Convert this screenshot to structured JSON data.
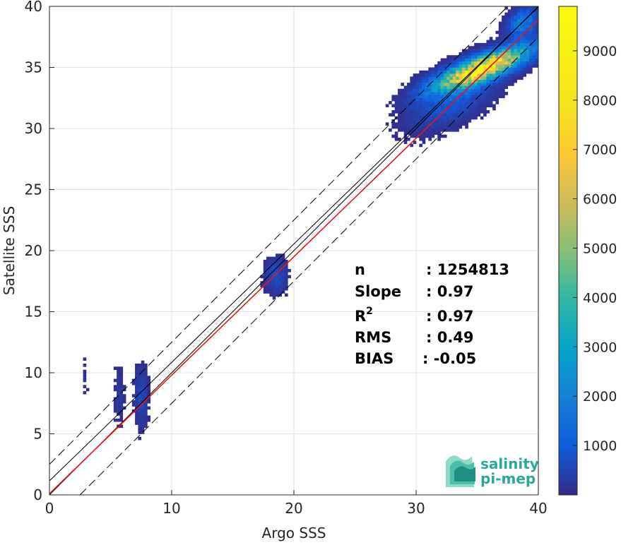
{
  "chart_data": {
    "type": "heatmap",
    "title": "",
    "xlabel": "Argo SSS",
    "ylabel": "Satellite SSS",
    "xlim": [
      0,
      40
    ],
    "ylim": [
      0,
      40
    ],
    "x_ticks": [
      0,
      10,
      20,
      30,
      40
    ],
    "y_ticks": [
      0,
      5,
      10,
      15,
      20,
      25,
      30,
      35,
      40
    ],
    "grid": true,
    "colormap": "parula",
    "colorbar": {
      "range": [
        0,
        9900
      ],
      "ticks": [
        1000,
        2000,
        3000,
        4000,
        5000,
        6000,
        7000,
        8000,
        9000
      ]
    },
    "reference_lines": [
      {
        "slope": 1,
        "intercept": 0,
        "style": "solid",
        "color": "#000000"
      },
      {
        "slope": 1,
        "intercept": 2.5,
        "style": "dashed",
        "color": "#000000"
      },
      {
        "slope": 1,
        "intercept": -2.5,
        "style": "dashed",
        "color": "#000000"
      },
      {
        "slope": 0.97,
        "intercept": 1.15,
        "style": "solid",
        "color": "#000000"
      },
      {
        "slope": 0.97,
        "intercept": 0.1,
        "style": "solid",
        "color": "#e8141c"
      }
    ],
    "density_clusters": [
      {
        "x": 35.3,
        "y": 34.8,
        "sx": 2.4,
        "sy": 1.1,
        "rho": 0.8,
        "peak": 9800
      },
      {
        "x": 33.0,
        "y": 32.5,
        "sx": 2.2,
        "sy": 1.6,
        "rho": 0.6,
        "peak": 1200
      },
      {
        "x": 38.6,
        "y": 38.5,
        "sx": 0.8,
        "sy": 0.8,
        "rho": 0.3,
        "peak": 2200
      },
      {
        "x": 18.4,
        "y": 17.8,
        "sx": 0.55,
        "sy": 0.9,
        "rho": 0.0,
        "peak": 900
      },
      {
        "x": 7.4,
        "y": 8.0,
        "sx": 0.35,
        "sy": 1.6,
        "rho": 0.0,
        "peak": 700
      },
      {
        "x": 5.6,
        "y": 8.0,
        "sx": 0.3,
        "sy": 1.5,
        "rho": 0.0,
        "peak": 300
      },
      {
        "x": 2.8,
        "y": 9.5,
        "sx": 0.2,
        "sy": 1.5,
        "rho": 0.0,
        "peak": 150
      }
    ],
    "stats": [
      {
        "name": "n",
        "value": ": 1254813"
      },
      {
        "name": "Slope",
        "value": ": 0.97"
      },
      {
        "name": "R",
        "sup": "2",
        "value": ": 0.97"
      },
      {
        "name": "RMS",
        "value": ": 0.49"
      },
      {
        "name": "BIAS",
        "value": ": -0.05"
      }
    ]
  },
  "logo": {
    "line1": "salinity",
    "line2": "pi-mep",
    "color": "#2aa89a"
  }
}
